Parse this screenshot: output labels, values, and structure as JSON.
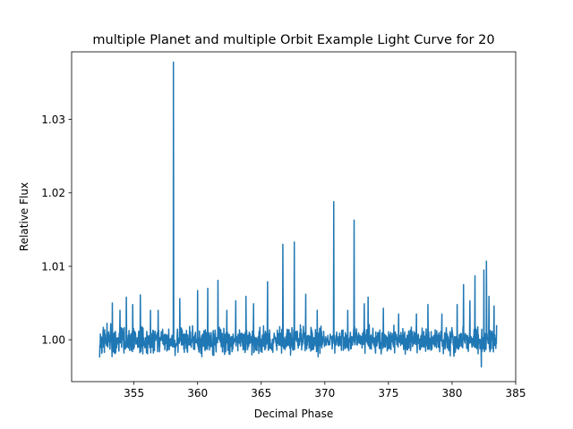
{
  "chart_data": {
    "type": "line",
    "title": "multiple Planet and multiple Orbit Example Light Curve for 20",
    "xlabel": "Decimal Phase",
    "ylabel": "Relative Flux",
    "xlim": [
      350.1,
      385.0
    ],
    "ylim": [
      0.9943,
      1.0392
    ],
    "xticks": [
      355,
      360,
      365,
      370,
      375,
      380,
      385
    ],
    "xtick_labels": [
      "355",
      "360",
      "365",
      "370",
      "375",
      "380",
      "385"
    ],
    "yticks": [
      1.0,
      1.01,
      1.02,
      1.03
    ],
    "ytick_labels": [
      "1.00",
      "1.01",
      "1.02",
      "1.03"
    ],
    "grid": false,
    "legend": "none",
    "series": [
      {
        "color": "#1f77b4",
        "x_range": [
          352.3,
          383.5
        ],
        "baseline": 1.0,
        "noise_band": [
          0.9974,
          1.0024
        ],
        "spikes": [
          {
            "x": 352.3,
            "y": 1.0033
          },
          {
            "x": 353.3,
            "y": 1.005
          },
          {
            "x": 353.9,
            "y": 1.004
          },
          {
            "x": 354.4,
            "y": 1.0058
          },
          {
            "x": 354.9,
            "y": 1.0048
          },
          {
            "x": 355.5,
            "y": 1.0061
          },
          {
            "x": 356.3,
            "y": 1.004
          },
          {
            "x": 356.9,
            "y": 1.004
          },
          {
            "x": 358.1,
            "y": 1.0378
          },
          {
            "x": 358.6,
            "y": 1.0056
          },
          {
            "x": 360.0,
            "y": 1.0067
          },
          {
            "x": 360.8,
            "y": 1.007
          },
          {
            "x": 361.6,
            "y": 1.0081
          },
          {
            "x": 362.3,
            "y": 1.004
          },
          {
            "x": 363.0,
            "y": 1.0053
          },
          {
            "x": 363.8,
            "y": 1.0059
          },
          {
            "x": 364.4,
            "y": 1.0049
          },
          {
            "x": 365.5,
            "y": 1.0079
          },
          {
            "x": 366.7,
            "y": 1.013
          },
          {
            "x": 367.6,
            "y": 1.0133
          },
          {
            "x": 368.5,
            "y": 1.0062
          },
          {
            "x": 369.4,
            "y": 1.004
          },
          {
            "x": 370.7,
            "y": 1.0188
          },
          {
            "x": 371.8,
            "y": 1.004
          },
          {
            "x": 372.3,
            "y": 1.0163
          },
          {
            "x": 373.1,
            "y": 1.0049
          },
          {
            "x": 373.4,
            "y": 1.0058
          },
          {
            "x": 374.6,
            "y": 1.0043
          },
          {
            "x": 375.8,
            "y": 1.0035
          },
          {
            "x": 377.2,
            "y": 1.0035
          },
          {
            "x": 378.1,
            "y": 1.0048
          },
          {
            "x": 379.2,
            "y": 1.0035
          },
          {
            "x": 380.4,
            "y": 1.0048
          },
          {
            "x": 380.9,
            "y": 1.0075
          },
          {
            "x": 381.4,
            "y": 1.0053
          },
          {
            "x": 381.8,
            "y": 1.0087
          },
          {
            "x": 382.5,
            "y": 1.0095
          },
          {
            "x": 382.7,
            "y": 1.0107
          },
          {
            "x": 382.9,
            "y": 1.0059
          },
          {
            "x": 383.3,
            "y": 1.0046
          }
        ],
        "dips": [
          {
            "x": 382.3,
            "y": 0.9963
          }
        ]
      }
    ]
  }
}
